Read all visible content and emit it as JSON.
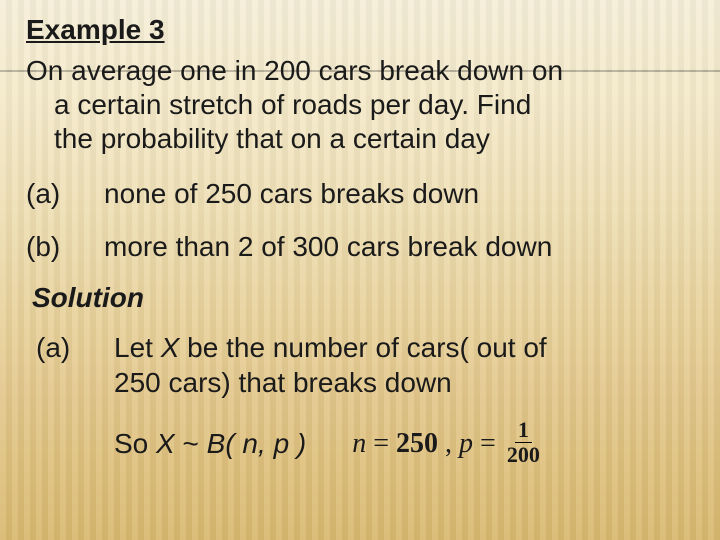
{
  "heading": "Example 3",
  "intro": {
    "line1": "On average one in 200 cars break down on",
    "line2": "a certain stretch of roads per day. Find",
    "line3": "the probability that on a certain day"
  },
  "items": [
    {
      "label": "(a)",
      "text": "none of 250 cars breaks down"
    },
    {
      "label": "(b)",
      "text": "more than 2 of 300 cars break down"
    }
  ],
  "solution_label": "Solution",
  "solution_a": {
    "label": "(a)",
    "line1": "Let X be the number of cars( out of",
    "line2": "250 cars) that breaks down"
  },
  "formula": {
    "text_prefix": "So ",
    "x": "X",
    "tilde": " ~ ",
    "b_open": "B( ",
    "n_sym": "n",
    "comma": ", ",
    "p_sym": "p",
    "close": " )"
  },
  "params": {
    "n_sym": "n",
    "eq": " = ",
    "n_val": "250",
    "sep": " ,  ",
    "p_sym": "p",
    "frac_num": "1",
    "frac_den": "200"
  },
  "colors": {
    "text": "#1a1a1a",
    "bg_top": "#f5eed8",
    "bg_bottom": "#d9b96f",
    "rule": "rgba(0,0,0,0.25)"
  },
  "fontsizes": {
    "heading": 28,
    "body": 28,
    "fraction": 22
  }
}
